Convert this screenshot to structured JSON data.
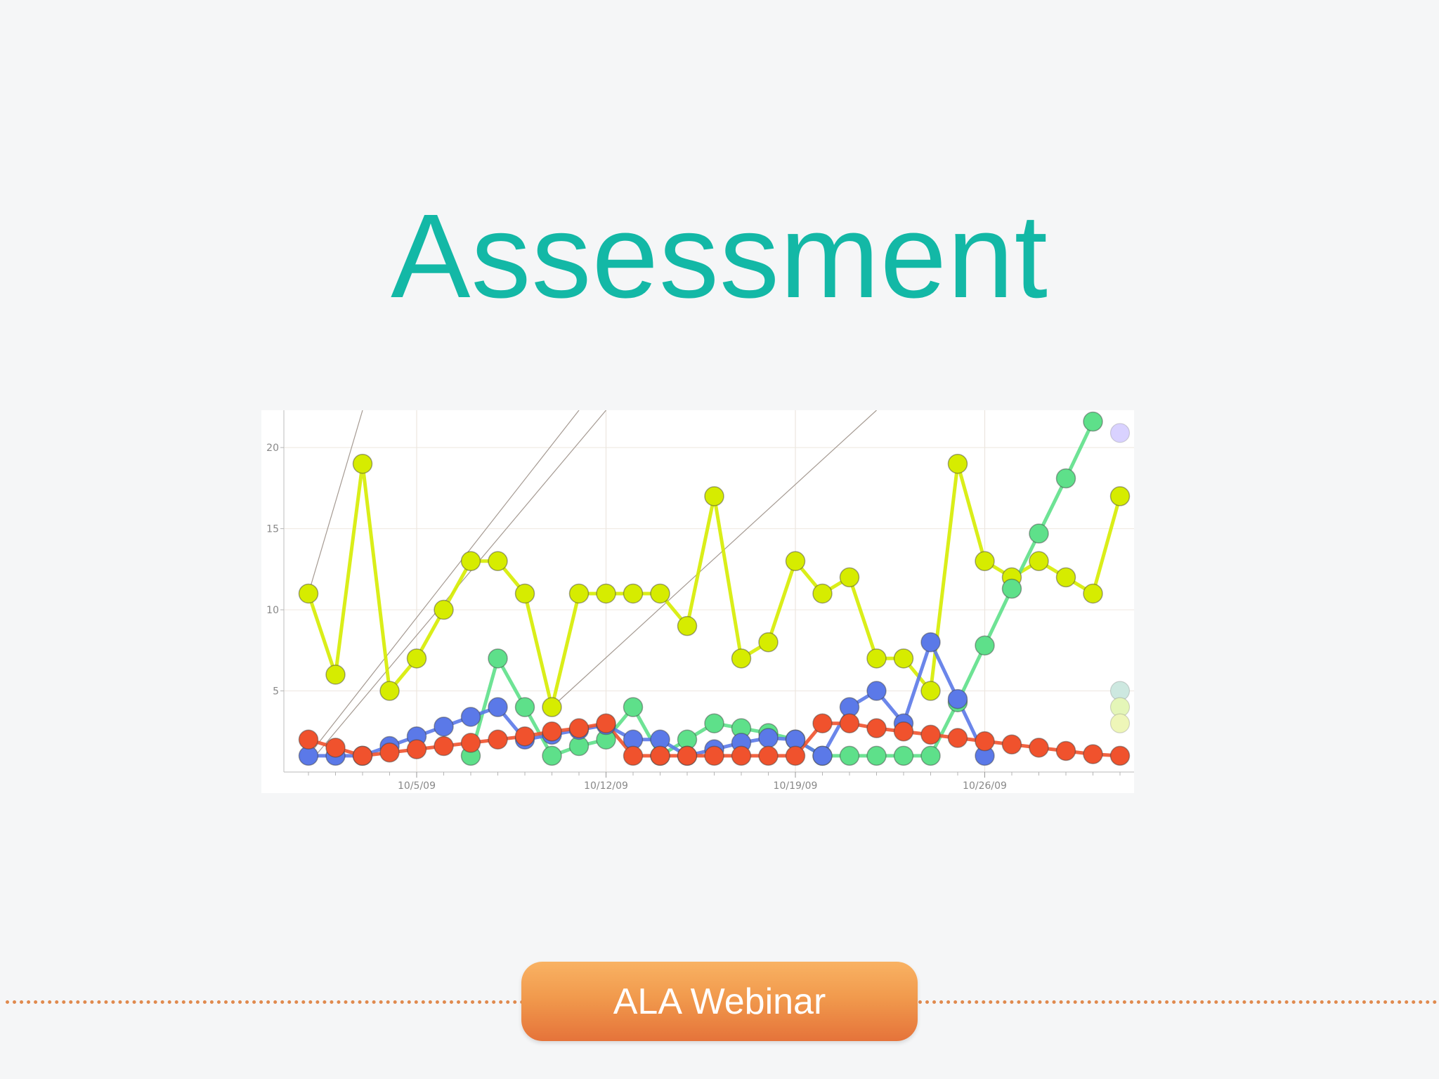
{
  "slide": {
    "title": "Assessment",
    "footer_label": "ALA Webinar"
  },
  "colors": {
    "title": "#13b8a6",
    "footer_gradient_top": "#f9b263",
    "footer_gradient_bottom": "#e5733a",
    "footer_dots": "#e08a4e",
    "background": "#f5f6f7"
  },
  "chart_data": {
    "type": "line",
    "title": "",
    "xlabel": "",
    "ylabel": "",
    "x": [
      "2009-10-01",
      "2009-10-02",
      "2009-10-03",
      "2009-10-04",
      "2009-10-05",
      "2009-10-06",
      "2009-10-07",
      "2009-10-08",
      "2009-10-09",
      "2009-10-10",
      "2009-10-11",
      "2009-10-12",
      "2009-10-13",
      "2009-10-14",
      "2009-10-15",
      "2009-10-16",
      "2009-10-17",
      "2009-10-18",
      "2009-10-19",
      "2009-10-20",
      "2009-10-21",
      "2009-10-22",
      "2009-10-23",
      "2009-10-24",
      "2009-10-25",
      "2009-10-26",
      "2009-10-27",
      "2009-10-28",
      "2009-10-29",
      "2009-10-30",
      "2009-10-31",
      "2009-11-01",
      "2009-11-02"
    ],
    "x_ticks": [
      "10/5/09",
      "10/12/09",
      "10/19/09",
      "10/26/09"
    ],
    "x_tick_dates": [
      "2009-10-05",
      "2009-10-12",
      "2009-10-19",
      "2009-10-26"
    ],
    "y_ticks": [
      5,
      10,
      15,
      20
    ],
    "ylim": [
      0,
      22.3
    ],
    "grid": true,
    "series": [
      {
        "color": "#d6ec00",
        "values": [
          11,
          6,
          19,
          5,
          7,
          10,
          13,
          13,
          11,
          4,
          11,
          11,
          11,
          11,
          9,
          17,
          7,
          8,
          13,
          11,
          12,
          7,
          7,
          5,
          19,
          13,
          12,
          13,
          12,
          11,
          17,
          null,
          null
        ]
      },
      {
        "color": "#5ee08a",
        "values": [
          null,
          null,
          null,
          null,
          null,
          null,
          1,
          7,
          4,
          1,
          1.6,
          2,
          4,
          1,
          2,
          3,
          2.7,
          2.4,
          2,
          1,
          1,
          1,
          1,
          1,
          4.3,
          7.8,
          11.3,
          14.7,
          18.1,
          21.6,
          null,
          null,
          null
        ]
      },
      {
        "color": "#5b79e8",
        "values": [
          1,
          1,
          1,
          1.6,
          2.2,
          2.8,
          3.4,
          4,
          2,
          2.3,
          2.6,
          2.9,
          2,
          2,
          1,
          1.4,
          1.8,
          2.1,
          2,
          1,
          4,
          5,
          3,
          8,
          4.5,
          1,
          null,
          null,
          null,
          null,
          null,
          null,
          null
        ]
      },
      {
        "color": "#f0522d",
        "values": [
          2,
          1.5,
          1,
          1.2,
          1.4,
          1.6,
          1.8,
          2,
          2.2,
          2.5,
          2.7,
          3,
          1,
          1,
          1,
          1,
          1,
          1,
          1,
          3,
          3,
          2.7,
          2.5,
          2.3,
          2.1,
          1.9,
          1.7,
          1.5,
          1.3,
          1.1,
          1,
          null,
          null
        ]
      }
    ],
    "faded_markers": [
      {
        "color": "#d9d2ff",
        "y": 20.9
      },
      {
        "color": "#cde8e0",
        "y": 5
      },
      {
        "color": "#e4f6b8",
        "y": 4
      },
      {
        "color": "#eef6b8",
        "y": 3
      }
    ],
    "trend_lines": [
      {
        "x0": "2009-10-01",
        "y0": 11,
        "x1": "2009-10-03",
        "y1": 22.3
      },
      {
        "x0": "2009-10-01",
        "y0": 1,
        "x1": "2009-10-11",
        "y1": 22.3
      },
      {
        "x0": "2009-10-01",
        "y0": 0.5,
        "x1": "2009-10-12",
        "y1": 22.3
      },
      {
        "x0": "2009-10-10",
        "y0": 4,
        "x1": "2009-10-22",
        "y1": 22.3
      }
    ]
  }
}
